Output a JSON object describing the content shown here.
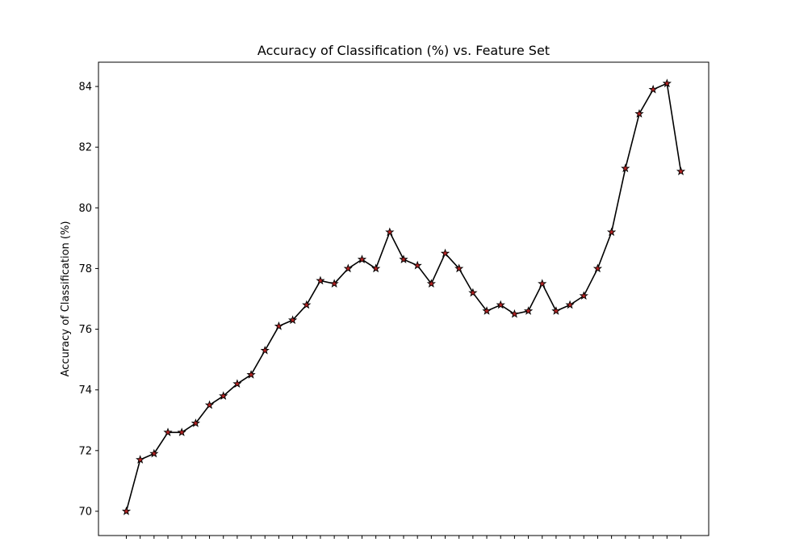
{
  "chart_data": {
    "type": "line",
    "title": "Accuracy of Classification (%) vs. Feature Set",
    "xlabel": "",
    "ylabel": "Accuracy of Classification (%)",
    "ylim": [
      69.2,
      84.8
    ],
    "yticks": [
      70,
      72,
      74,
      76,
      78,
      80,
      82,
      84
    ],
    "x_tick_labels_visible": false,
    "grid": false,
    "legend": "none",
    "line_color": "#000000",
    "marker": "star",
    "marker_fill": "#b22222",
    "marker_edge": "#000000",
    "series": [
      {
        "values": [
          70.0,
          71.7,
          71.9,
          72.6,
          72.6,
          72.9,
          73.5,
          73.8,
          74.2,
          74.5,
          75.3,
          76.1,
          76.3,
          76.8,
          77.6,
          77.5,
          78.0,
          78.3,
          78.0,
          79.2,
          78.3,
          78.1,
          77.5,
          78.5,
          78.0,
          77.2,
          76.6,
          76.8,
          76.5,
          76.6,
          77.5,
          76.6,
          76.8,
          77.1,
          78.0,
          79.2,
          81.3,
          83.1,
          83.9,
          84.1,
          81.2
        ]
      }
    ]
  }
}
